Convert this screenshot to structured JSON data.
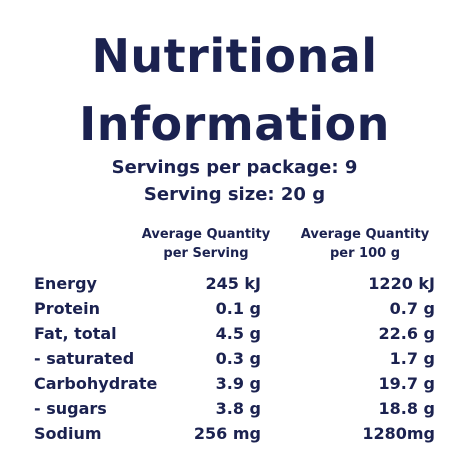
{
  "title": {
    "line1": "Nutritional",
    "line2": "Information"
  },
  "serving": {
    "per_package": "Servings per package: 9",
    "size": "Serving size: 20 g"
  },
  "columns": {
    "per_serving": {
      "line1": "Average Quantity",
      "line2": "per Serving"
    },
    "per_100g": {
      "line1": "Average Quantity",
      "line2": "per 100 g"
    }
  },
  "rows": [
    {
      "name": "Energy",
      "per_serving": "245 kJ",
      "per_100g": "1220 kJ"
    },
    {
      "name": "Protein",
      "per_serving": "0.1 g",
      "per_100g": "0.7 g"
    },
    {
      "name": "Fat, total",
      "per_serving": "4.5 g",
      "per_100g": "22.6 g"
    },
    {
      "name": "- saturated",
      "per_serving": "0.3 g",
      "per_100g": "1.7 g"
    },
    {
      "name": "Carbohydrate",
      "per_serving": "3.9 g",
      "per_100g": "19.7 g"
    },
    {
      "name": "- sugars",
      "per_serving": "3.8 g",
      "per_100g": "18.8 g"
    },
    {
      "name": "Sodium",
      "per_serving": "256 mg",
      "per_100g": "1280mg"
    }
  ],
  "colors": {
    "text": "#1b2250",
    "background": "#ffffff"
  }
}
